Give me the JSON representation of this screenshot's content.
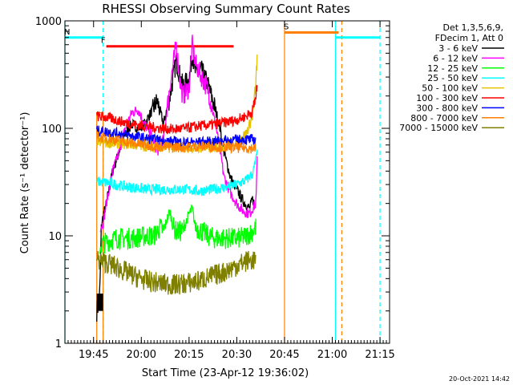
{
  "chart_data": {
    "type": "line",
    "title": "RHESSI Observing Summary Count Rates",
    "xlabel": "Start Time (23-Apr-12 19:36:02)",
    "ylabel": "Count Rate (s⁻¹ detector⁻¹)",
    "yscale": "log",
    "ylim": [
      1,
      1000
    ],
    "xlim_minutes_after_1936": [
      0,
      102
    ],
    "x_ticks": [
      {
        "label": "19:45",
        "min": 9
      },
      {
        "label": "20:00",
        "min": 24
      },
      {
        "label": "20:15",
        "min": 39
      },
      {
        "label": "20:30",
        "min": 54
      },
      {
        "label": "20:45",
        "min": 69
      },
      {
        "label": "21:00",
        "min": 84
      },
      {
        "label": "21:15",
        "min": 99
      }
    ],
    "y_ticks": [
      {
        "label": "1",
        "value": 1
      },
      {
        "label": "10",
        "value": 10
      },
      {
        "label": "100",
        "value": 100
      },
      {
        "label": "1000",
        "value": 1000
      }
    ],
    "legend_header": [
      "Det 1,3,5,6,9,",
      "FDecim 1, Att 0"
    ],
    "legend_position": "right",
    "series": [
      {
        "name": "3 - 6 keV",
        "color": "#000000",
        "points": [
          [
            10,
            2
          ],
          [
            10.9,
            2.6
          ],
          [
            11.5,
            13
          ],
          [
            13,
            20
          ],
          [
            15,
            40
          ],
          [
            17,
            60
          ],
          [
            19,
            90
          ],
          [
            21,
            110
          ],
          [
            23,
            100
          ],
          [
            25,
            110
          ],
          [
            27,
            140
          ],
          [
            29,
            180
          ],
          [
            31,
            110
          ],
          [
            33,
            200
          ],
          [
            35,
            430
          ],
          [
            36,
            320
          ],
          [
            37,
            250
          ],
          [
            39,
            280
          ],
          [
            40,
            500
          ],
          [
            41,
            330
          ],
          [
            43,
            340
          ],
          [
            45,
            250
          ],
          [
            47,
            160
          ],
          [
            48.5,
            110
          ],
          [
            50,
            60
          ],
          [
            52,
            35
          ],
          [
            54,
            27
          ],
          [
            56,
            21
          ],
          [
            58,
            18
          ],
          [
            59,
            22
          ],
          [
            60,
            18
          ]
        ]
      },
      {
        "name": "6 - 12 keV",
        "color": "#ff00ff",
        "points": [
          [
            11,
            12
          ],
          [
            12,
            13
          ],
          [
            13,
            20
          ],
          [
            15,
            40
          ],
          [
            17,
            60
          ],
          [
            19,
            100
          ],
          [
            21,
            140
          ],
          [
            23,
            150
          ],
          [
            25,
            110
          ],
          [
            27,
            90
          ],
          [
            29,
            60
          ],
          [
            31,
            80
          ],
          [
            33,
            250
          ],
          [
            35,
            600
          ],
          [
            36,
            300
          ],
          [
            37,
            200
          ],
          [
            39,
            240
          ],
          [
            40,
            600
          ],
          [
            41,
            400
          ],
          [
            43,
            300
          ],
          [
            45,
            230
          ],
          [
            47,
            120
          ],
          [
            48.5,
            70
          ],
          [
            50,
            35
          ],
          [
            52,
            25
          ],
          [
            54,
            20
          ],
          [
            56,
            17
          ],
          [
            58,
            16
          ],
          [
            59,
            18
          ],
          [
            60,
            20
          ],
          [
            60.5,
            60
          ]
        ]
      },
      {
        "name": "12 - 25 keV",
        "color": "#00ff00",
        "points": [
          [
            11,
            8
          ],
          [
            12,
            8.5
          ],
          [
            14,
            9
          ],
          [
            16,
            9.5
          ],
          [
            18,
            9.5
          ],
          [
            20,
            9.5
          ],
          [
            22,
            9.5
          ],
          [
            24,
            9.8
          ],
          [
            26,
            10
          ],
          [
            28,
            10
          ],
          [
            30,
            12
          ],
          [
            31,
            11
          ],
          [
            32,
            14
          ],
          [
            33,
            17
          ],
          [
            34,
            12
          ],
          [
            35,
            11
          ],
          [
            37,
            11
          ],
          [
            39,
            16
          ],
          [
            40,
            18
          ],
          [
            41,
            12
          ],
          [
            43,
            11
          ],
          [
            45,
            10
          ],
          [
            47,
            9.5
          ],
          [
            49,
            9.5
          ],
          [
            51,
            9.5
          ],
          [
            53,
            9.5
          ],
          [
            55,
            9.5
          ],
          [
            57,
            10
          ],
          [
            59,
            11
          ],
          [
            60,
            12
          ]
        ]
      },
      {
        "name": "25 - 50 keV",
        "color": "#00ffff",
        "points": [
          [
            10,
            32
          ],
          [
            14,
            31
          ],
          [
            18,
            29
          ],
          [
            22,
            28
          ],
          [
            26,
            27
          ],
          [
            30,
            27
          ],
          [
            34,
            27
          ],
          [
            38,
            27
          ],
          [
            42,
            26
          ],
          [
            46,
            27
          ],
          [
            50,
            28
          ],
          [
            54,
            30
          ],
          [
            57,
            33
          ],
          [
            59,
            38
          ],
          [
            60,
            50
          ],
          [
            60.5,
            60
          ]
        ]
      },
      {
        "name": "50 - 100 keV",
        "color": "#e6c100",
        "points": [
          [
            10,
            75
          ],
          [
            14,
            73
          ],
          [
            18,
            72
          ],
          [
            22,
            70
          ],
          [
            26,
            68
          ],
          [
            30,
            67
          ],
          [
            34,
            66
          ],
          [
            38,
            66
          ],
          [
            42,
            66
          ],
          [
            46,
            66
          ],
          [
            50,
            68
          ],
          [
            54,
            75
          ],
          [
            57,
            90
          ],
          [
            59,
            130
          ],
          [
            60,
            250
          ],
          [
            60.5,
            600
          ]
        ]
      },
      {
        "name": "100 - 300 keV",
        "color": "#ff0000",
        "points": [
          [
            10,
            130
          ],
          [
            14,
            125
          ],
          [
            18,
            115
          ],
          [
            22,
            108
          ],
          [
            26,
            104
          ],
          [
            30,
            100
          ],
          [
            34,
            98
          ],
          [
            38,
            100
          ],
          [
            42,
            105
          ],
          [
            46,
            108
          ],
          [
            50,
            113
          ],
          [
            54,
            120
          ],
          [
            57,
            130
          ],
          [
            59,
            145
          ],
          [
            60,
            200
          ],
          [
            60.5,
            250
          ]
        ]
      },
      {
        "name": "300 - 800 keV",
        "color": "#0000ff",
        "points": [
          [
            10,
            95
          ],
          [
            14,
            92
          ],
          [
            18,
            88
          ],
          [
            22,
            84
          ],
          [
            26,
            80
          ],
          [
            30,
            77
          ],
          [
            34,
            75
          ],
          [
            38,
            74
          ],
          [
            42,
            74
          ],
          [
            46,
            75
          ],
          [
            50,
            77
          ],
          [
            54,
            78
          ],
          [
            57,
            79
          ],
          [
            60,
            78
          ]
        ]
      },
      {
        "name": "800 - 7000 keV",
        "color": "#ff8000",
        "points": [
          [
            10,
            84
          ],
          [
            14,
            80
          ],
          [
            18,
            76
          ],
          [
            22,
            72
          ],
          [
            26,
            70
          ],
          [
            30,
            68
          ],
          [
            34,
            67
          ],
          [
            38,
            67
          ],
          [
            42,
            68
          ],
          [
            46,
            68
          ],
          [
            50,
            67
          ],
          [
            54,
            66
          ],
          [
            57,
            66
          ],
          [
            60,
            65
          ]
        ]
      },
      {
        "name": "7000 - 15000 keV",
        "color": "#808000",
        "points": [
          [
            10,
            6
          ],
          [
            14,
            5.5
          ],
          [
            18,
            4.8
          ],
          [
            22,
            4.2
          ],
          [
            26,
            3.8
          ],
          [
            30,
            3.6
          ],
          [
            34,
            3.5
          ],
          [
            38,
            3.6
          ],
          [
            42,
            3.8
          ],
          [
            46,
            4.2
          ],
          [
            50,
            4.6
          ],
          [
            54,
            5.3
          ],
          [
            57,
            5.8
          ],
          [
            60,
            6
          ]
        ]
      }
    ],
    "bars": [
      {
        "label": "N",
        "color": "#00ffff",
        "y": 700,
        "x_start": 0,
        "x_end": 12
      },
      {
        "label": "F",
        "color": "#ff0000",
        "y": 580,
        "x_start": 13,
        "x_end": 53
      },
      {
        "label": "S",
        "color": "#ff8000",
        "y": 780,
        "x_start": 69,
        "x_end": 86
      },
      {
        "label": "",
        "color": "#00ffff",
        "y": 700,
        "x_start": 85,
        "x_end": 99
      }
    ],
    "vlines": [
      {
        "min": 0,
        "color": "#00ffff",
        "style": "solid"
      },
      {
        "min": 12,
        "color": "#00ffff",
        "style": "dashed"
      },
      {
        "min": 69,
        "color": "#ff8000",
        "style": "solid"
      },
      {
        "min": 85,
        "color": "#00ffff",
        "style": "solid"
      },
      {
        "min": 87,
        "color": "#ff8000",
        "style": "dashed"
      },
      {
        "min": 99,
        "color": "#00ffff",
        "style": "dashed"
      }
    ],
    "attenuator_box": {
      "color": "#ff8000",
      "x_start": 10,
      "x_end": 12,
      "y_low": 1,
      "y_high": 140
    },
    "black_block": {
      "x_start": 10,
      "x_end": 12,
      "y_low": 2,
      "y_high": 2.9
    }
  },
  "footer": {
    "date": "20-Oct-2021 14:42"
  }
}
